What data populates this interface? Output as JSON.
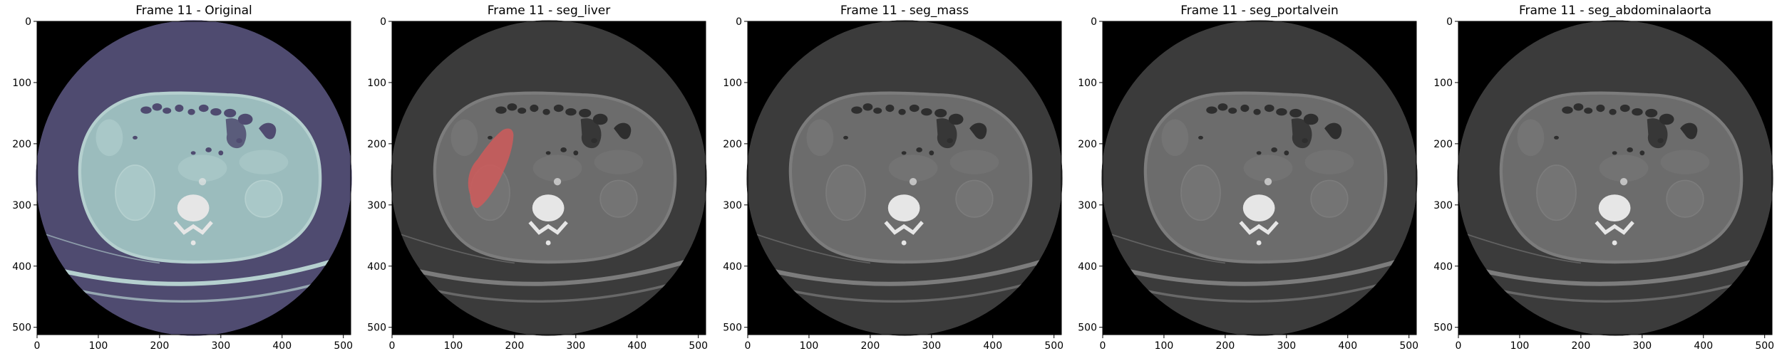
{
  "frame_label": "Frame 11",
  "colors": {
    "background": "#ffffff",
    "image_background": "#000000",
    "original_field": "#4f4b70",
    "original_body": "#9bbcbd",
    "original_body_edge": "#b5d0cf",
    "original_organ": "#a9c8c8",
    "original_gas": "#4f4b70",
    "gray_field": "#3b3b3b",
    "gray_body": "#6c6c6c",
    "gray_body_edge": "#7c7c7c",
    "gray_organ": "#747474",
    "gray_gas": "#2e2e2e",
    "bone": "#e6e6e6",
    "liver_overlay": "#cf5a5a"
  },
  "axis": {
    "x_ticks": [
      "0",
      "100",
      "200",
      "300",
      "400",
      "500"
    ],
    "y_ticks": [
      "0",
      "100",
      "200",
      "300",
      "400",
      "500"
    ]
  },
  "panels": [
    {
      "title": "Frame 11 - Original",
      "colormap": "bone-colormap",
      "segmentation": "none"
    },
    {
      "title": "Frame 11 - seg_liver",
      "colormap": "gray-overlay",
      "segmentation": "liver"
    },
    {
      "title": "Frame 11 - seg_mass",
      "colormap": "gray-overlay",
      "segmentation": "none"
    },
    {
      "title": "Frame 11 - seg_portalvein",
      "colormap": "gray-overlay",
      "segmentation": "none"
    },
    {
      "title": "Frame 11 - seg_abdominalaorta",
      "colormap": "gray-overlay",
      "segmentation": "none"
    }
  ]
}
